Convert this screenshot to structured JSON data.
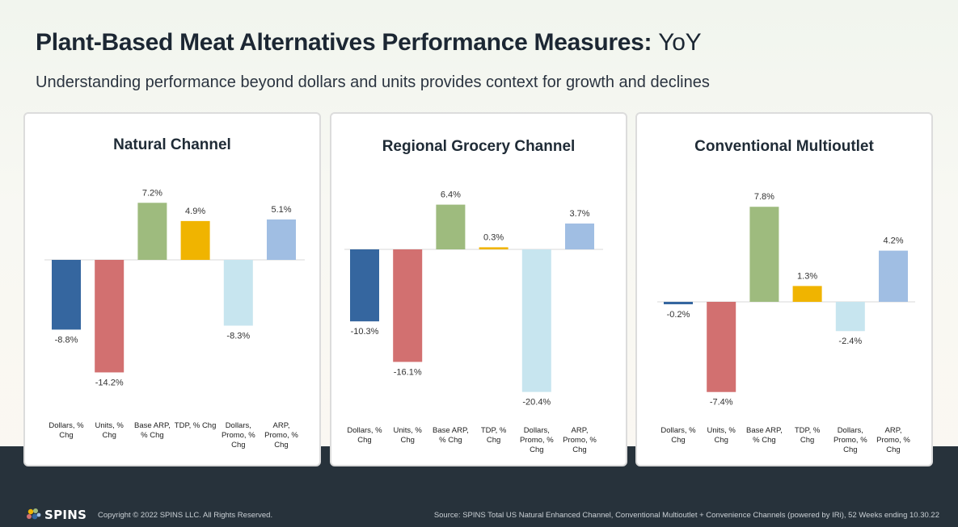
{
  "header": {
    "title_bold": "Plant-Based Meat Alternatives Performance Measures",
    "title_separator": ":",
    "title_light": "YoY",
    "subtitle": "Understanding performance beyond dollars and units provides context for growth and declines"
  },
  "colors": {
    "dollars": "#35669f",
    "units": "#d27070",
    "base_arp": "#9ebb7e",
    "tdp": "#f0b400",
    "dollars_promo": "#c7e5ef",
    "arp_promo": "#a0bee3"
  },
  "chart_data": [
    {
      "type": "bar",
      "title": "Natural Channel",
      "categories": [
        [
          "Dollars, %",
          "Chg"
        ],
        [
          "Units, %",
          "Chg"
        ],
        [
          "Base ARP,",
          "% Chg"
        ],
        [
          "TDP, % Chg"
        ],
        [
          "Dollars,",
          "Promo, %",
          "Chg"
        ],
        [
          "ARP,",
          "Promo, %",
          "Chg"
        ]
      ],
      "values": [
        -8.8,
        -14.2,
        7.2,
        4.9,
        -8.3,
        5.1
      ],
      "data_labels": [
        "-8.8%",
        "-14.2%",
        "7.2%",
        "4.9%",
        "-8.3%",
        "5.1%"
      ]
    },
    {
      "type": "bar",
      "title": "Regional Grocery Channel",
      "categories": [
        [
          "Dollars, %",
          "Chg"
        ],
        [
          "Units, %",
          "Chg"
        ],
        [
          "Base ARP,",
          "% Chg"
        ],
        [
          "TDP, %",
          "Chg"
        ],
        [
          "Dollars,",
          "Promo, %",
          "Chg"
        ],
        [
          "ARP,",
          "Promo, %",
          "Chg"
        ]
      ],
      "values": [
        -10.3,
        -16.1,
        6.4,
        0.3,
        -20.4,
        3.7
      ],
      "data_labels": [
        "-10.3%",
        "-16.1%",
        "6.4%",
        "0.3%",
        "-20.4%",
        "3.7%"
      ]
    },
    {
      "type": "bar",
      "title": "Conventional Multioutlet",
      "categories": [
        [
          "Dollars, %",
          "Chg"
        ],
        [
          "Units, %",
          "Chg"
        ],
        [
          "Base ARP,",
          "% Chg"
        ],
        [
          "TDP, %",
          "Chg"
        ],
        [
          "Dollars,",
          "Promo, %",
          "Chg"
        ],
        [
          "ARP,",
          "Promo, %",
          "Chg"
        ]
      ],
      "values": [
        -0.2,
        -7.4,
        7.8,
        1.3,
        -2.4,
        4.2
      ],
      "data_labels": [
        "-0.2%",
        "-7.4%",
        "7.8%",
        "1.3%",
        "-2.4%",
        "4.2%"
      ]
    }
  ],
  "footer": {
    "logo_text": "SPINS",
    "copyright": "Copyright © 2022 SPINS LLC. All Rights Reserved.",
    "source": "Source: SPINS Total US Natural Enhanced Channel, Conventional Multioutlet + Convenience Channels (powered by IRi), 52 Weeks ending 10.30.22"
  }
}
